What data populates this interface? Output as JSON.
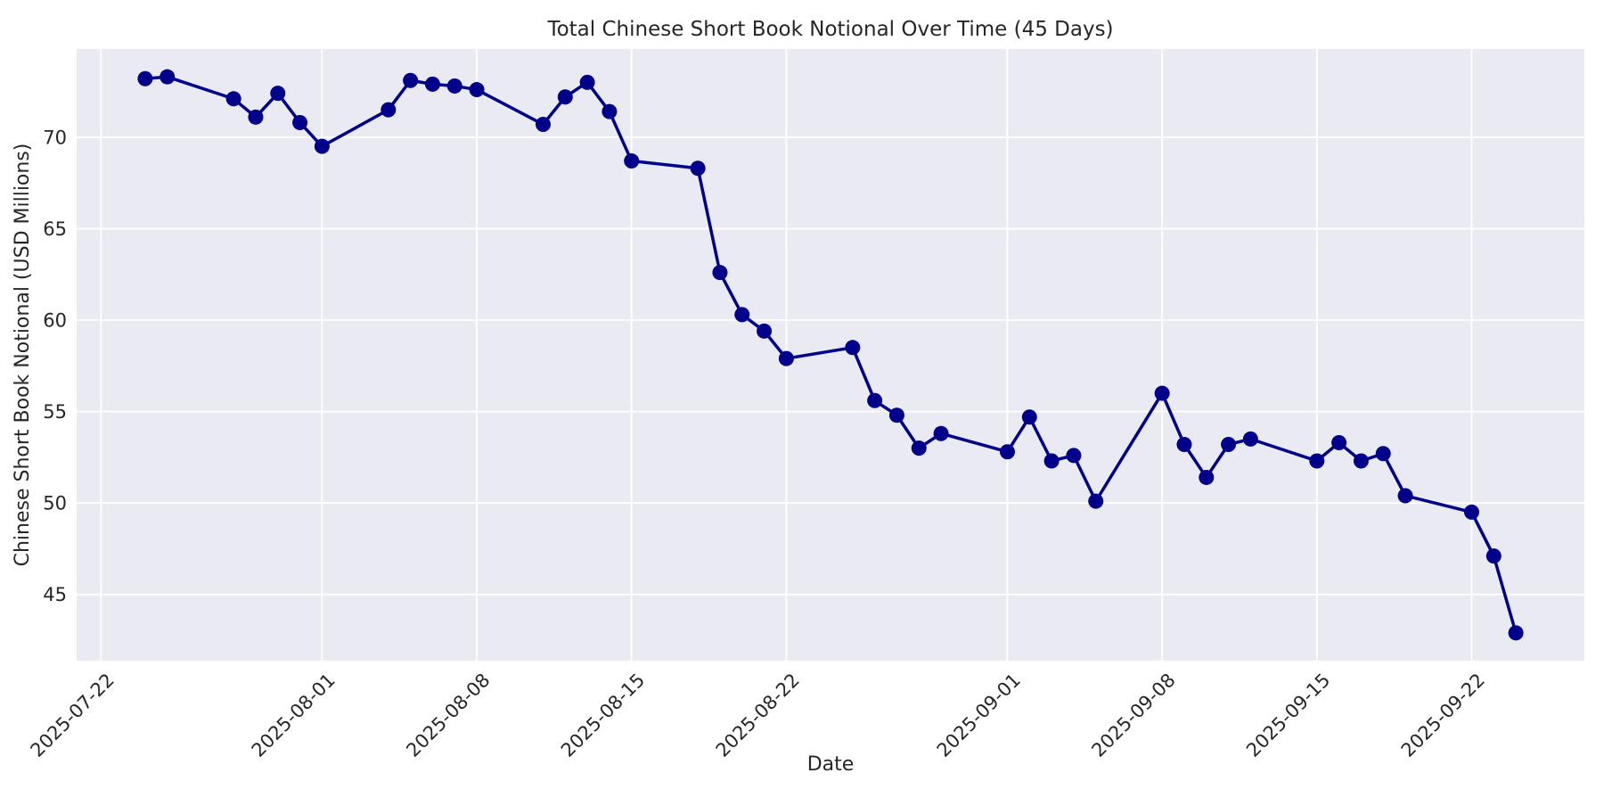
{
  "chart_data": {
    "type": "line",
    "title": "Total Chinese Short Book Notional Over Time (45 Days)",
    "xlabel": "Date",
    "ylabel": "Chinese Short Book Notional (USD Millions)",
    "series_name": "Total Chinese Short Book Notional",
    "x": [
      "2025-07-24",
      "2025-07-25",
      "2025-07-28",
      "2025-07-29",
      "2025-07-30",
      "2025-07-31",
      "2025-08-01",
      "2025-08-04",
      "2025-08-05",
      "2025-08-06",
      "2025-08-07",
      "2025-08-08",
      "2025-08-11",
      "2025-08-12",
      "2025-08-13",
      "2025-08-14",
      "2025-08-15",
      "2025-08-18",
      "2025-08-19",
      "2025-08-20",
      "2025-08-21",
      "2025-08-22",
      "2025-08-25",
      "2025-08-26",
      "2025-08-27",
      "2025-08-28",
      "2025-08-29",
      "2025-09-01",
      "2025-09-02",
      "2025-09-03",
      "2025-09-04",
      "2025-09-05",
      "2025-09-08",
      "2025-09-09",
      "2025-09-10",
      "2025-09-11",
      "2025-09-12",
      "2025-09-15",
      "2025-09-16",
      "2025-09-17",
      "2025-09-18",
      "2025-09-19",
      "2025-09-22",
      "2025-09-23",
      "2025-09-24"
    ],
    "y": [
      73.2,
      73.3,
      72.1,
      71.1,
      72.4,
      70.8,
      69.5,
      71.5,
      73.1,
      72.9,
      72.8,
      72.6,
      70.7,
      72.2,
      73.0,
      71.4,
      68.7,
      68.3,
      62.6,
      60.3,
      59.4,
      57.9,
      58.5,
      55.6,
      54.8,
      53.0,
      53.8,
      52.8,
      54.7,
      52.3,
      52.6,
      50.1,
      56.0,
      53.2,
      51.4,
      53.2,
      53.5,
      52.3,
      53.3,
      52.3,
      52.7,
      50.4,
      49.5,
      47.1,
      42.9
    ],
    "x_ticks": [
      "2025-07-22",
      "2025-08-01",
      "2025-08-08",
      "2025-08-15",
      "2025-08-22",
      "2025-09-01",
      "2025-09-08",
      "2025-09-15",
      "2025-09-22"
    ],
    "y_ticks": [
      45,
      50,
      55,
      60,
      65,
      70
    ],
    "x_tick_rotation_deg": 45,
    "grid": true,
    "legend": "none",
    "plot_bg": "#eaeaf2",
    "grid_color": "#ffffff",
    "line_color": "#00008b",
    "marker": "o",
    "marker_color": "#00008b",
    "text_color": "#262626"
  }
}
